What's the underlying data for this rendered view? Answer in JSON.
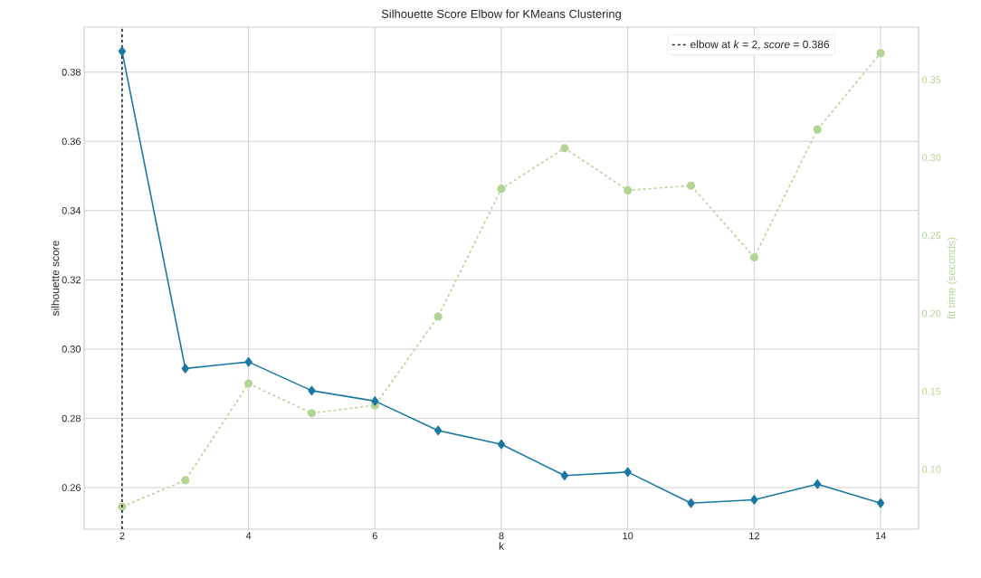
{
  "chart_data": {
    "type": "line",
    "title": "Silhouette Score Elbow for KMeans Clustering",
    "xlabel": "k",
    "ylabel": "silhouette score",
    "y2label": "fit time (seconds)",
    "x": [
      2,
      3,
      4,
      5,
      6,
      7,
      8,
      9,
      10,
      11,
      12,
      13,
      14
    ],
    "series": [
      {
        "color": "#1a78a3",
        "marker": "diamond",
        "line_style": "solid",
        "values": [
          0.386,
          0.2944,
          0.2963,
          0.288,
          0.285,
          0.2765,
          0.2725,
          0.2635,
          0.2645,
          0.2555,
          0.2565,
          0.261,
          0.2555
        ]
      },
      {
        "color": "#b3d494",
        "marker": "circle",
        "line_style": "dashed",
        "axis": "y2",
        "values": [
          0.076,
          0.093,
          0.155,
          0.136,
          0.141,
          0.198,
          0.28,
          0.306,
          0.279,
          0.282,
          0.236,
          0.318,
          0.367
        ]
      }
    ],
    "xlim": [
      1.4,
      14.6
    ],
    "xticks": [
      2,
      4,
      6,
      8,
      10,
      12,
      14
    ],
    "ylim": [
      0.248,
      0.393
    ],
    "yticks": [
      {
        "value": 0.26,
        "label": "0.26"
      },
      {
        "value": 0.28,
        "label": "0.28"
      },
      {
        "value": 0.3,
        "label": "0.30"
      },
      {
        "value": 0.32,
        "label": "0.32"
      },
      {
        "value": 0.34,
        "label": "0.34"
      },
      {
        "value": 0.36,
        "label": "0.36"
      },
      {
        "value": 0.38,
        "label": "0.38"
      }
    ],
    "y2lim": [
      0.0616,
      0.3837
    ],
    "y2ticks": [
      {
        "value": 0.1,
        "label": "0.10"
      },
      {
        "value": 0.15,
        "label": "0.15"
      },
      {
        "value": 0.2,
        "label": "0.20"
      },
      {
        "value": 0.25,
        "label": "0.25"
      },
      {
        "value": 0.3,
        "label": "0.30"
      },
      {
        "value": 0.35,
        "label": "0.35"
      }
    ],
    "ref_lines": [
      {
        "axis": "x",
        "value": 2,
        "label": "elbow at *k* = 2, *score* = 0.386",
        "color": "#262626",
        "line_style": "dashed"
      }
    ],
    "grid": true,
    "legend": "top right"
  }
}
